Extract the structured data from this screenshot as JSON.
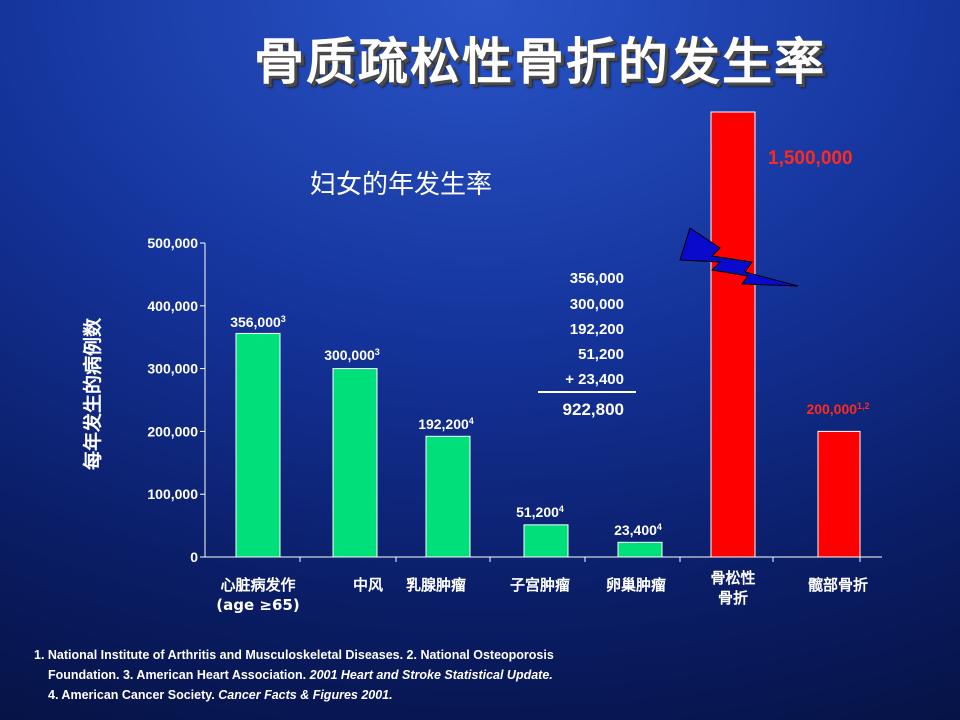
{
  "title": "骨质疏松性骨折的发生率",
  "chart_data": {
    "type": "bar",
    "title": "妇女的年发生率",
    "ylabel": "每年发生的病例数",
    "ylim": [
      0,
      500000
    ],
    "yticks": [
      "0",
      "100,000",
      "200,000",
      "300,000",
      "400,000",
      "500,000"
    ],
    "categories": [
      {
        "label": "心脏病发作",
        "label2": "(age ≥65)",
        "value": 356000,
        "value_label": "356,000",
        "sup": "3",
        "color": "#00e07a"
      },
      {
        "label": "中风",
        "label2": "",
        "value": 300000,
        "value_label": "300,000",
        "sup": "3",
        "color": "#00e07a"
      },
      {
        "label": "乳腺肿瘤",
        "label2": "",
        "value": 192200,
        "value_label": "192,200",
        "sup": "4",
        "color": "#00e07a"
      },
      {
        "label": "子宫肿瘤",
        "label2": "",
        "value": 51200,
        "value_label": "51,200",
        "sup": "4",
        "color": "#00e07a"
      },
      {
        "label": "卵巢肿瘤",
        "label2": "",
        "value": 23400,
        "value_label": "23,400",
        "sup": "4",
        "color": "#00e07a"
      },
      {
        "label": "骨松性",
        "label2": "骨折",
        "value": 1500000,
        "value_label": "1,500,000",
        "sup": "",
        "color": "#ff0000"
      },
      {
        "label": "髋部骨折",
        "label2": "",
        "value": 200000,
        "value_label": "200,000",
        "sup": "1,2",
        "color": "#ff0000"
      }
    ],
    "sum": {
      "lines": [
        "356,000",
        "300,000",
        "192,200",
        "51,200",
        "+ 23,400"
      ],
      "total": "922,800"
    }
  },
  "footnotes": {
    "line1": "1. National Institute of Arthritis and Musculoskeletal Diseases.     2. National Osteoporosis",
    "line2a": "Foundation.   3. American Heart Association. ",
    "line2b": "2001 Heart and Stroke Statistical Update.",
    "line3a": "4. American Cancer Society. ",
    "line3b": "Cancer Facts & Figures 2001."
  }
}
